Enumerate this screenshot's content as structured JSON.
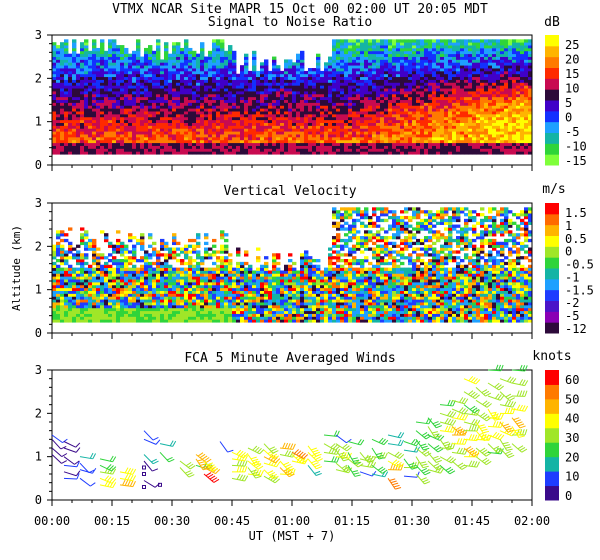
{
  "header": {
    "title": "VTMX   NCAR Site   MAPR 15 Oct 00   02:00 UT   20:05   MDT"
  },
  "colors": {
    "snr": [
      "#7fff3a",
      "#2fd43a",
      "#14b4a5",
      "#1ea0ff",
      "#1330ff",
      "#4000c8",
      "#2d0a3a",
      "#c80a50",
      "#ff2a00",
      "#ff7a00",
      "#ffb400",
      "#ffff00"
    ],
    "vel": [
      "#2d0a3a",
      "#8a00b4",
      "#4a14c8",
      "#1e3cff",
      "#1ea0ff",
      "#14b4a5",
      "#2fd43a",
      "#a0e628",
      "#ffff00",
      "#ffb400",
      "#ff6a00",
      "#ff0000"
    ],
    "wind": [
      "#3a0a8a",
      "#1e3cff",
      "#14b4a5",
      "#2fd43a",
      "#a0e628",
      "#ffff00",
      "#ffb400",
      "#ff7a00",
      "#ff0000"
    ]
  },
  "chart_data": [
    {
      "type": "heatmap",
      "title": "Signal to Noise Ratio",
      "ylabel": "",
      "xlabel": "",
      "ylim": [
        0,
        3
      ],
      "y_ticks": [
        "0",
        "1",
        "2",
        "3"
      ],
      "colorbar_unit": "dB",
      "colorbar_labels": [
        "25",
        "20",
        "15",
        "10",
        "5",
        "0",
        "-5",
        "-10",
        "-15"
      ],
      "colorbar_range": [
        -15,
        28
      ],
      "valid_height_km": [
        0.25,
        2.9
      ]
    },
    {
      "type": "heatmap",
      "title": "Vertical Velocity",
      "ylabel": "Altitude (km)",
      "xlabel": "",
      "ylim": [
        0,
        3
      ],
      "y_ticks": [
        "0",
        "1",
        "2",
        "3"
      ],
      "colorbar_unit": "m/s",
      "colorbar_labels": [
        "1.5",
        "1",
        "0.5",
        "0",
        "-0.5",
        "-1",
        "-1.5",
        "-2",
        "-5",
        "-12"
      ],
      "colorbar_range": [
        -12,
        2
      ],
      "valid_height_km": [
        0.25,
        2.9
      ]
    },
    {
      "type": "scatter",
      "subtype": "wind_barbs",
      "title": "FCA 5 Minute Averaged Winds",
      "xlabel": "UT  (MST + 7)",
      "ylim": [
        0,
        3
      ],
      "y_ticks": [
        "0",
        "1",
        "2",
        "3"
      ],
      "x_range_minutes": [
        0,
        120
      ],
      "x_ticks": [
        "00:00",
        "00:15",
        "00:30",
        "00:45",
        "01:00",
        "01:15",
        "01:30",
        "01:45",
        "02:00"
      ],
      "colorbar_unit": "knots",
      "colorbar_labels": [
        "60",
        "50",
        "40",
        "30",
        "20",
        "10",
        "0"
      ],
      "colorbar_range": [
        0,
        65
      ],
      "columns": [
        {
          "t": 0,
          "heights": [
            1.05,
            1.2,
            1.4,
            1.5
          ],
          "speeds": [
            6,
            7,
            5,
            8
          ]
        },
        {
          "t": 3,
          "heights": [
            0.5,
            0.65,
            0.8,
            1.0,
            1.2,
            1.35
          ],
          "speeds": [
            8,
            6,
            9,
            7,
            5,
            6
          ]
        },
        {
          "t": 7,
          "heights": [
            0.5,
            0.7,
            0.85,
            1.0
          ],
          "speeds": [
            10,
            14,
            12,
            15
          ]
        },
        {
          "t": 12,
          "heights": [
            0.35,
            0.5,
            0.65,
            0.8,
            0.95
          ],
          "speeds": [
            40,
            38,
            36,
            25,
            22
          ]
        },
        {
          "t": 17,
          "heights": [
            0.35,
            0.5,
            0.65
          ],
          "speeds": [
            45,
            42,
            40
          ]
        },
        {
          "t": 23,
          "heights": [
            0.3,
            0.45,
            0.6,
            0.75,
            0.9,
            1.05,
            1.4,
            1.6
          ],
          "speeds": [
            4,
            5,
            3,
            4,
            6,
            20,
            12,
            8
          ]
        },
        {
          "t": 27,
          "heights": [
            0.35,
            1.1,
            1.3
          ],
          "speeds": [
            3,
            22,
            18
          ]
        },
        {
          "t": 32,
          "heights": [
            0.75,
            0.9
          ],
          "speeds": [
            30,
            32
          ]
        },
        {
          "t": 36,
          "heights": [
            0.8,
            0.95,
            1.05
          ],
          "speeds": [
            28,
            45,
            50
          ]
        },
        {
          "t": 38,
          "heights": [
            0.6,
            0.75,
            0.9
          ],
          "speeds": [
            60,
            50,
            40
          ]
        },
        {
          "t": 42,
          "heights": [
            1.35
          ],
          "speeds": [
            8
          ]
        },
        {
          "t": 45,
          "heights": [
            0.5,
            0.65,
            0.8,
            0.95,
            1.1
          ],
          "speeds": [
            35,
            38,
            36,
            40,
            37
          ]
        },
        {
          "t": 49,
          "heights": [
            0.6,
            0.75,
            0.9,
            1.05,
            1.2
          ],
          "speeds": [
            38,
            36,
            40,
            42,
            35
          ]
        },
        {
          "t": 53,
          "heights": [
            0.55,
            0.7,
            0.85,
            1.0,
            1.15,
            1.3
          ],
          "speeds": [
            36,
            40,
            38,
            44,
            42,
            33
          ]
        },
        {
          "t": 57,
          "heights": [
            0.6,
            0.75,
            0.9,
            1.05,
            1.2
          ],
          "speeds": [
            42,
            44,
            38,
            36,
            48
          ]
        },
        {
          "t": 60,
          "heights": [
            0.9,
            1.05,
            1.1
          ],
          "speeds": [
            42,
            40,
            55
          ]
        },
        {
          "t": 64,
          "heights": [
            0.8,
            0.95,
            1.1,
            1.25
          ],
          "speeds": [
            20,
            40,
            43,
            38
          ]
        },
        {
          "t": 68,
          "heights": [
            0.9,
            1.1,
            1.3,
            1.5
          ],
          "speeds": [
            28,
            35,
            30,
            24
          ]
        },
        {
          "t": 71,
          "heights": [
            0.7,
            0.85,
            1.0,
            1.15,
            1.3,
            1.5
          ],
          "speeds": [
            30,
            32,
            38,
            36,
            30,
            12
          ]
        },
        {
          "t": 74,
          "heights": [
            0.8,
            0.95,
            1.1,
            1.35
          ],
          "speeds": [
            28,
            34,
            26,
            22
          ]
        },
        {
          "t": 77,
          "heights": [
            0.65,
            0.8,
            0.95,
            1.1
          ],
          "speeds": [
            8,
            32,
            36,
            34
          ]
        },
        {
          "t": 80,
          "heights": [
            0.6,
            0.8,
            1.0,
            1.2,
            1.4
          ],
          "speeds": [
            20,
            25,
            30,
            28,
            26
          ]
        },
        {
          "t": 84,
          "heights": [
            0.5,
            0.7,
            0.9,
            1.1,
            1.3,
            1.5
          ],
          "speeds": [
            52,
            48,
            40,
            30,
            20,
            15
          ]
        },
        {
          "t": 88,
          "heights": [
            0.55,
            0.75,
            0.95,
            1.15,
            1.35
          ],
          "speeds": [
            10,
            30,
            25,
            20,
            25
          ]
        },
        {
          "t": 91,
          "heights": [
            0.6,
            0.8,
            1.0,
            1.2,
            1.4,
            1.6,
            1.8
          ],
          "speeds": [
            30,
            28,
            32,
            30,
            28,
            26,
            24
          ]
        },
        {
          "t": 94,
          "heights": [
            0.7,
            0.9,
            1.1,
            1.3,
            1.5,
            1.7,
            1.9
          ],
          "speeds": [
            32,
            34,
            30,
            28,
            25,
            30,
            28
          ]
        },
        {
          "t": 97,
          "heights": [
            0.8,
            1.0,
            1.2,
            1.4,
            1.6,
            1.8,
            2.0,
            2.2
          ],
          "speeds": [
            28,
            30,
            33,
            35,
            38,
            36,
            30,
            28
          ]
        },
        {
          "t": 100,
          "heights": [
            0.9,
            1.1,
            1.3,
            1.5,
            1.7,
            1.9,
            2.1,
            2.3
          ],
          "speeds": [
            30,
            35,
            42,
            45,
            44,
            38,
            34,
            30
          ]
        },
        {
          "t": 103,
          "heights": [
            0.8,
            1.0,
            1.2,
            1.4,
            1.6,
            1.8,
            2.0,
            2.2,
            2.5,
            2.8
          ],
          "speeds": [
            35,
            40,
            45,
            38,
            36,
            32,
            30,
            28,
            35,
            40
          ]
        },
        {
          "t": 106,
          "heights": [
            1.0,
            1.2,
            1.4,
            1.6,
            1.8,
            2.0,
            2.3,
            2.6
          ],
          "speeds": [
            30,
            36,
            40,
            42,
            38,
            35,
            32,
            30
          ]
        },
        {
          "t": 109,
          "heights": [
            1.1,
            1.3,
            1.5,
            1.7,
            1.9,
            2.1,
            2.4,
            2.7,
            3.0
          ],
          "speeds": [
            28,
            34,
            38,
            40,
            42,
            38,
            33,
            30,
            28
          ]
        },
        {
          "t": 112,
          "heights": [
            1.2,
            1.4,
            1.6,
            1.8,
            2.0,
            2.2,
            2.5,
            2.8
          ],
          "speeds": [
            30,
            35,
            40,
            44,
            40,
            36,
            32,
            30
          ]
        },
        {
          "t": 115,
          "heights": [
            1.3,
            1.5,
            1.7,
            1.9,
            2.1,
            2.4,
            2.7,
            3.0
          ],
          "speeds": [
            32,
            36,
            42,
            45,
            40,
            35,
            30,
            28
          ]
        }
      ]
    }
  ]
}
